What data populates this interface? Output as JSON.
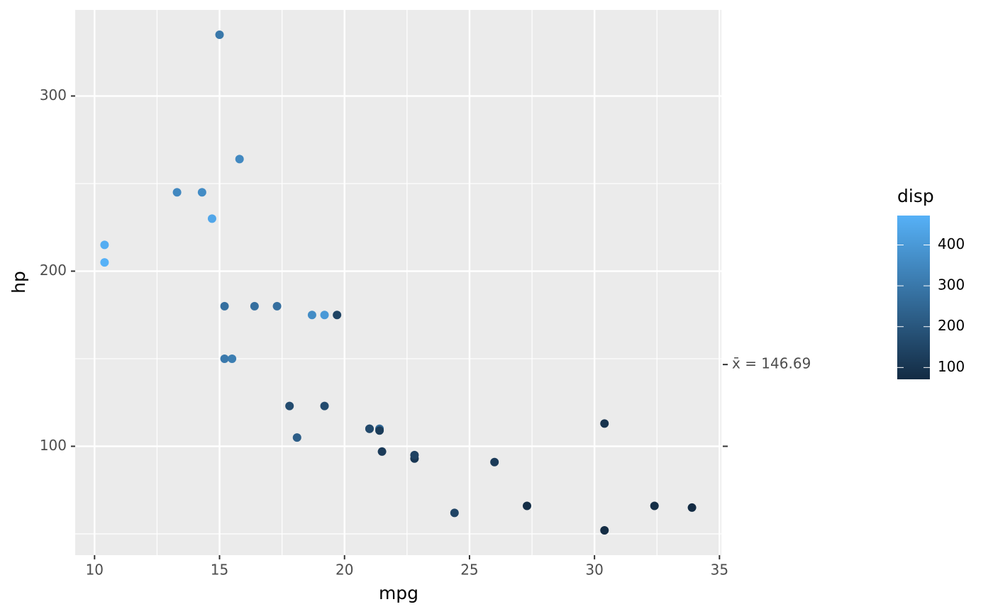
{
  "chart_data": {
    "type": "scatter",
    "x_label": "mpg",
    "y_label": "hp",
    "x": [
      21,
      21,
      22.8,
      21.4,
      18.7,
      18.1,
      14.3,
      24.4,
      22.8,
      19.2,
      17.8,
      16.4,
      17.3,
      15.2,
      10.4,
      10.4,
      14.7,
      32.4,
      30.4,
      33.9,
      21.5,
      15.5,
      15.2,
      13.3,
      19.2,
      27.3,
      26,
      30.4,
      15.8,
      19.7,
      15,
      21.4
    ],
    "values": [
      110,
      110,
      93,
      110,
      175,
      105,
      245,
      62,
      95,
      123,
      123,
      180,
      180,
      180,
      205,
      215,
      230,
      66,
      52,
      65,
      97,
      150,
      150,
      245,
      175,
      66,
      91,
      113,
      264,
      175,
      335,
      109
    ],
    "color_values": [
      160,
      160,
      108,
      258,
      360,
      225,
      360,
      146.7,
      140.8,
      167.6,
      167.6,
      275.8,
      275.8,
      275.8,
      472,
      460,
      440,
      78.7,
      75.7,
      71.1,
      120.1,
      318,
      304,
      350,
      400,
      79,
      120.3,
      95.1,
      351,
      145,
      301,
      121
    ],
    "xlim": [
      9.225,
      35.075
    ],
    "xticks": [
      10,
      15,
      20,
      25,
      30,
      35
    ],
    "xminor": [
      12.5,
      17.5,
      22.5,
      27.5,
      32.5
    ],
    "ylim": [
      37.85,
      349.15
    ],
    "yticks": [
      100,
      200,
      300
    ],
    "yminor": [
      50,
      150,
      250
    ],
    "y2lim": [
      37.85,
      349.15
    ],
    "y2ticks": [
      {
        "value": 100,
        "label": null
      },
      {
        "value": 146.69,
        "label": "x̄ = 146.69"
      }
    ],
    "grid": true,
    "colorbar": {
      "title": "disp",
      "lim": [
        71.1,
        472
      ],
      "ticks": [
        100,
        200,
        300,
        400
      ],
      "low": "#132B43",
      "high": "#56B1F7"
    }
  }
}
